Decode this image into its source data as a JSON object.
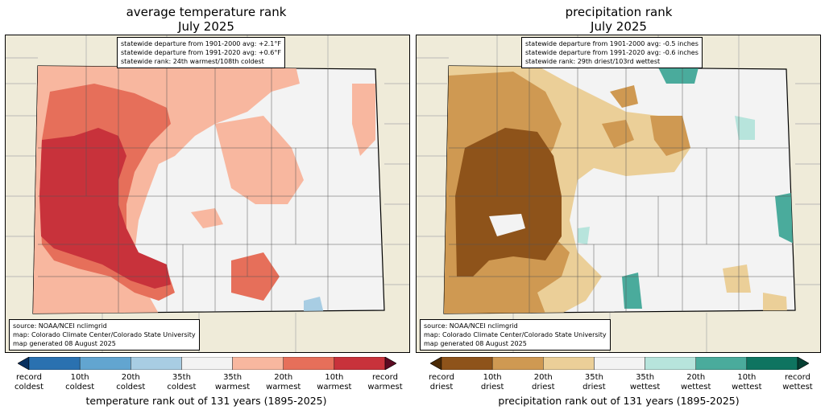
{
  "panels": [
    {
      "id": "temperature",
      "title_line1": "average temperature rank",
      "title_line2": "July 2025",
      "stats": [
        "statewide departure from 1901-2000 avg: +2.1°F",
        "statewide departure from 1991-2020 avg: +0.6°F",
        "statewide rank: 24th warmest/108th coldest"
      ],
      "source": [
        "source: NOAA/NCEI nclimgrid",
        "map: Colorado Climate Center/Colorado State University",
        "map generated 08 August 2025"
      ],
      "colorbar_colors": [
        "#08305f",
        "#2a71b0",
        "#62a5d0",
        "#a8cde3",
        "#f3f3f3",
        "#f8b79f",
        "#e66f5a",
        "#c8323b",
        "#5c0a22"
      ],
      "colorbar_labels": [
        {
          "l1": "record",
          "l2": "coldest"
        },
        {
          "l1": "10th",
          "l2": "coldest"
        },
        {
          "l1": "20th",
          "l2": "coldest"
        },
        {
          "l1": "35th",
          "l2": "coldest"
        },
        {
          "l1": "35th",
          "l2": "warmest"
        },
        {
          "l1": "20th",
          "l2": "warmest"
        },
        {
          "l1": "10th",
          "l2": "warmest"
        },
        {
          "l1": "record",
          "l2": "warmest"
        }
      ],
      "colorbar_title": "temperature rank out of 131 years (1895-2025)"
    },
    {
      "id": "precipitation",
      "title_line1": "precipitation rank",
      "title_line2": "July 2025",
      "stats": [
        "statewide departure from 1901-2000 avg: -0.5 inches",
        "statewide departure from 1991-2020 avg: -0.6 inches",
        "statewide rank: 29th driest/103rd wettest"
      ],
      "source": [
        "source: NOAA/NCEI nclimgrid",
        "map: Colorado Climate Center/Colorado State University",
        "map generated 08 August 2025"
      ],
      "colorbar_colors": [
        "#4a2a06",
        "#8e531a",
        "#cf9952",
        "#ebcf98",
        "#f3f3f3",
        "#b7e4dc",
        "#4aab9c",
        "#0e7460",
        "#063f33"
      ],
      "colorbar_labels": [
        {
          "l1": "record",
          "l2": "driest"
        },
        {
          "l1": "10th",
          "l2": "driest"
        },
        {
          "l1": "20th",
          "l2": "driest"
        },
        {
          "l1": "35th",
          "l2": "driest"
        },
        {
          "l1": "35th",
          "l2": "wettest"
        },
        {
          "l1": "20th",
          "l2": "wettest"
        },
        {
          "l1": "10th",
          "l2": "wettest"
        },
        {
          "l1": "record",
          "l2": "wettest"
        }
      ],
      "colorbar_title": "precipitation rank out of 131 years (1895-2025)"
    }
  ]
}
